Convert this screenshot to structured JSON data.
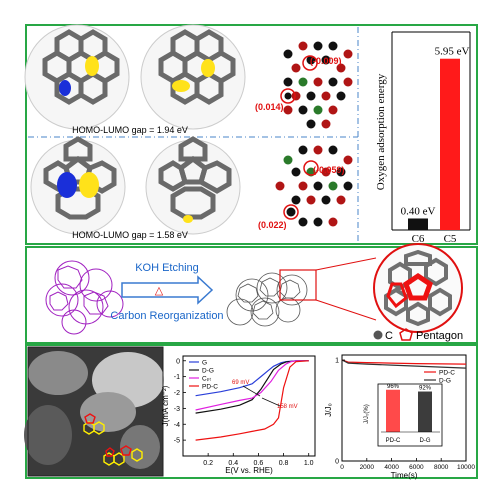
{
  "top": {
    "gap_a": "HOMO-LUMO gap = 1.94 eV",
    "gap_b": "HOMO-LUMO gap = 1.58 eV",
    "charge_a1": "(-0.009)",
    "charge_a2": "(0.014)",
    "charge_b1": "(-0.059)",
    "charge_b2": "(0.022)"
  },
  "bar_chart": {
    "ylabel": "Oxygen adsorption energy",
    "bars": [
      {
        "label": "C6",
        "value_label": "0.40 eV",
        "value": 0.4,
        "color": "#111111"
      },
      {
        "label": "C5",
        "value_label": "5.95 eV",
        "value": 5.95,
        "color": "#ff1a1a"
      }
    ],
    "ymax": 6.6
  },
  "middle": {
    "step1": "KOH Etching",
    "step2": "Carbon Reorganization",
    "triangle": "△",
    "legend_c": "C",
    "legend_pentagon": "Pentagon"
  },
  "chart_data": [
    {
      "type": "line",
      "xlabel": "E(V vs. RHE)",
      "ylabel": "J(mA cm⁻²)",
      "xlim": [
        0.0,
        1.05
      ],
      "ylim": [
        -6.0,
        0.3
      ],
      "xticks": [
        "0.2",
        "0.4",
        "0.6",
        "0.8",
        "1.0"
      ],
      "yticks": [
        "0",
        "-1",
        "-2",
        "-3",
        "-4",
        "-5"
      ],
      "annotations": [
        "69 mV",
        "158 mV"
      ],
      "series": [
        {
          "name": "G",
          "color": "#2a3fd9",
          "x": [
            0.1,
            0.3,
            0.45,
            0.55,
            0.62,
            0.68,
            0.72,
            0.78,
            0.82,
            0.9,
            1.0
          ],
          "y": [
            -2.2,
            -1.95,
            -1.7,
            -1.45,
            -1.0,
            -0.6,
            -0.35,
            -0.12,
            -0.05,
            0,
            0
          ]
        },
        {
          "name": "D-G",
          "color": "#111111",
          "x": [
            0.1,
            0.3,
            0.45,
            0.55,
            0.62,
            0.68,
            0.72,
            0.78,
            0.82,
            0.9,
            1.0
          ],
          "y": [
            -3.3,
            -3.05,
            -2.8,
            -2.45,
            -1.8,
            -1.05,
            -0.55,
            -0.2,
            -0.07,
            0,
            0
          ]
        },
        {
          "name": "Cₚₜ",
          "color": "#e020e0",
          "x": [
            0.1,
            0.3,
            0.45,
            0.55,
            0.62,
            0.7,
            0.76,
            0.82,
            0.86,
            0.9,
            1.0
          ],
          "y": [
            -3.1,
            -2.75,
            -2.5,
            -2.35,
            -2.0,
            -1.3,
            -0.6,
            -0.2,
            -0.05,
            0,
            0
          ]
        },
        {
          "name": "PD-C",
          "color": "#ee1111",
          "x": [
            0.1,
            0.3,
            0.45,
            0.55,
            0.65,
            0.72,
            0.76,
            0.8,
            0.85,
            0.9,
            1.0
          ],
          "y": [
            -5.0,
            -4.8,
            -4.6,
            -4.45,
            -4.3,
            -4.0,
            -3.6,
            -1.7,
            -0.4,
            -0.05,
            0
          ]
        }
      ]
    },
    {
      "type": "line",
      "xlabel": "Time(s)",
      "ylabel": "J/J₀",
      "xlim": [
        0,
        10000
      ],
      "ylim": [
        0,
        1.05
      ],
      "xticks": [
        "0",
        "2000",
        "4000",
        "6000",
        "8000",
        "10000"
      ],
      "yticks": [
        "0",
        "1"
      ],
      "series": [
        {
          "name": "PD-C",
          "color": "#ee1111",
          "x": [
            0,
            500,
            2000,
            4000,
            6000,
            8000,
            10000
          ],
          "y": [
            1.0,
            0.98,
            0.975,
            0.97,
            0.965,
            0.962,
            0.96
          ]
        },
        {
          "name": "D-G",
          "color": "#333333",
          "x": [
            0,
            500,
            2000,
            4000,
            6000,
            8000,
            10000
          ],
          "y": [
            1.0,
            0.97,
            0.96,
            0.95,
            0.94,
            0.93,
            0.92
          ]
        }
      ],
      "inset": {
        "type": "bar",
        "ylabel": "J/J₀(%)",
        "categories": [
          "PD-C",
          "D-G"
        ],
        "values": [
          96,
          92
        ],
        "value_labels": [
          "96%",
          "92%"
        ],
        "colors": [
          "#ff4a4a",
          "#3c3c3c"
        ]
      }
    }
  ]
}
